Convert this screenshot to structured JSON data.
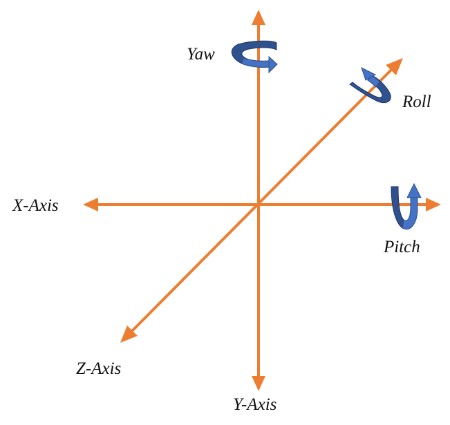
{
  "labels": {
    "yaw": "Yaw",
    "roll": "Roll",
    "x_axis": "X-Axis",
    "pitch": "Pitch",
    "z_axis": "Z-Axis",
    "y_axis": "Y-Axis"
  },
  "colors": {
    "axis": "#ED7D31",
    "rotation_fill": "#4472C4",
    "rotation_dark": "#2F528F",
    "text": "#111111"
  }
}
